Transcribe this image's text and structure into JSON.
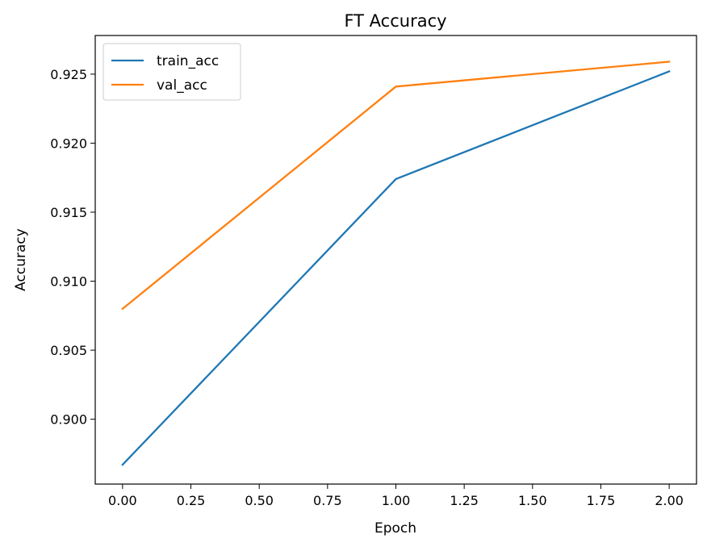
{
  "chart_data": {
    "type": "line",
    "title": "FT Accuracy",
    "xlabel": "Epoch",
    "ylabel": "Accuracy",
    "x": [
      0,
      1,
      2
    ],
    "series": [
      {
        "name": "train_acc",
        "color": "#1f77b4",
        "values": [
          0.8967,
          0.9174,
          0.9252
        ]
      },
      {
        "name": "val_acc",
        "color": "#ff7f0e",
        "values": [
          0.908,
          0.9241,
          0.9259
        ]
      }
    ],
    "xlim": [
      -0.1,
      2.1
    ],
    "ylim": [
      0.8953,
      0.9278
    ],
    "xticks": [
      0.0,
      0.25,
      0.5,
      0.75,
      1.0,
      1.25,
      1.5,
      1.75,
      2.0
    ],
    "xtick_labels": [
      "0.00",
      "0.25",
      "0.50",
      "0.75",
      "1.00",
      "1.25",
      "1.50",
      "1.75",
      "2.00"
    ],
    "yticks": [
      0.9,
      0.905,
      0.91,
      0.915,
      0.92,
      0.925
    ],
    "ytick_labels": [
      "0.900",
      "0.905",
      "0.910",
      "0.915",
      "0.920",
      "0.925"
    ],
    "legend_position": "upper-left",
    "grid": false
  }
}
